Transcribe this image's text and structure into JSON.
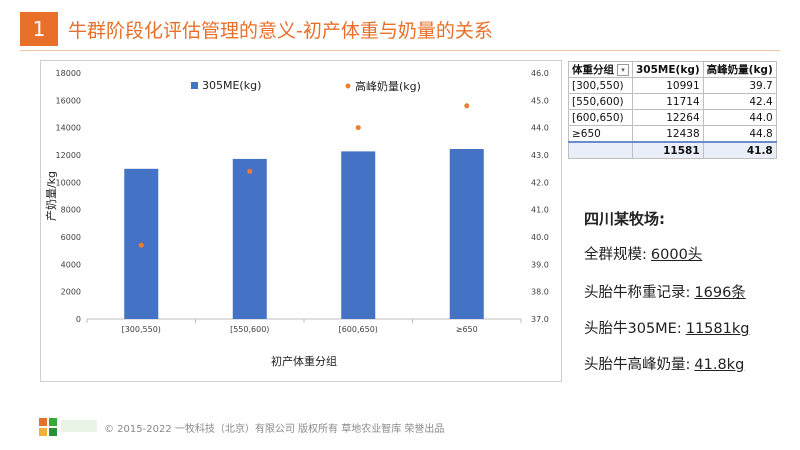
{
  "header": {
    "number": "1",
    "title": "牛群阶段化评估管理的意义-初产体重与奶量的关系"
  },
  "chart_data": {
    "type": "bar",
    "categories": [
      "[300,550)",
      "[550,600)",
      "[600,650)",
      "≥650"
    ],
    "series": [
      {
        "name": "305ME(kg)",
        "type": "bar",
        "axis": "left",
        "values": [
          10991,
          11714,
          12264,
          12438
        ],
        "color": "#4472c4"
      },
      {
        "name": "高峰奶量(kg)",
        "type": "scatter",
        "axis": "right",
        "values": [
          39.7,
          42.4,
          44.0,
          44.8
        ],
        "color": "#ed7d31"
      }
    ],
    "xlabel": "初产体重分组",
    "ylabel": "产奶量/kg",
    "ylim": [
      0,
      18000
    ],
    "y_ticks": [
      "0",
      "2000",
      "4000",
      "6000",
      "8000",
      "10000",
      "12000",
      "14000",
      "16000",
      "18000"
    ],
    "y2lim": [
      37.0,
      46.0
    ],
    "y2_ticks": [
      "37.0",
      "38.0",
      "39.0",
      "40.0",
      "41.0",
      "42.0",
      "43.0",
      "44.0",
      "45.0",
      "46.0"
    ],
    "legend_position": "top",
    "grid": false
  },
  "table": {
    "headers": [
      "体重分组",
      "305ME(kg)",
      "高峰奶量(kg)"
    ],
    "rows": [
      [
        "[300,550)",
        "10991",
        "39.7"
      ],
      [
        "[550,600)",
        "11714",
        "42.4"
      ],
      [
        "[600,650)",
        "12264",
        "44.0"
      ],
      [
        "≥650",
        "12438",
        "44.8"
      ]
    ],
    "total": [
      "",
      "11581",
      "41.8"
    ]
  },
  "farm": {
    "heading": "四川某牧场:",
    "facts": [
      {
        "label": "全群规模:",
        "value": "6000头"
      },
      {
        "label": "头胎牛称重记录:",
        "value": "1696条"
      },
      {
        "label": "头胎牛305ME:",
        "value": "11581kg"
      },
      {
        "label": "头胎牛高峰奶量:",
        "value": "41.8kg"
      }
    ]
  },
  "footer": {
    "copyright": "© 2015-2022 一牧科技（北京）有限公司 版权所有 草地农业智库 荣誉出品"
  }
}
